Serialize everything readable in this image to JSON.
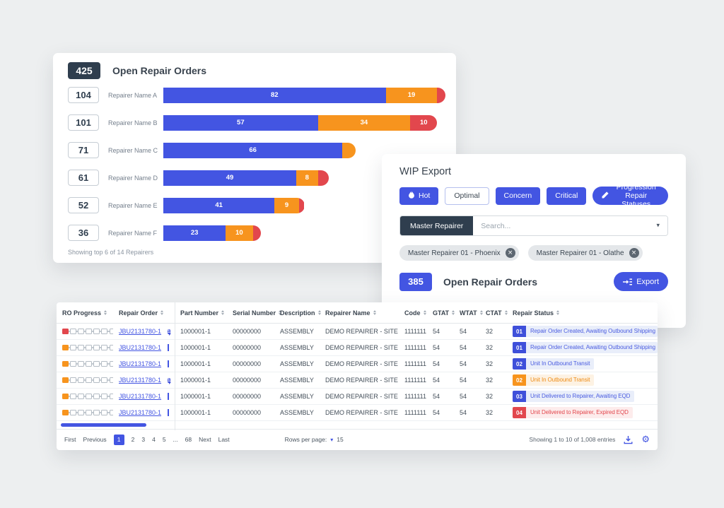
{
  "theme": {
    "blue": "#4355e2",
    "orange": "#f7941e",
    "red": "#e2474d",
    "dark": "#2f3e4e",
    "status_styles": {
      "blue": {
        "badge": "#3f50da",
        "text": "#4a5ce0",
        "bg": "#e9eefa"
      },
      "orange": {
        "badge": "#f7941e",
        "text": "#ee8b14",
        "bg": "#fdf2e3"
      },
      "red": {
        "badge": "#e2474d",
        "text": "#e2474d",
        "bg": "#fdecec"
      }
    }
  },
  "chart_card": {
    "total": "425",
    "title": "Open Repair Orders",
    "footnote": "Showing top 6 of 14 Repairers",
    "max_total": 104,
    "rows": [
      {
        "count": "104",
        "label": "Repairer Name A",
        "total": 104,
        "segments": [
          {
            "color": "blue",
            "value": 82,
            "label": "82"
          },
          {
            "color": "orange",
            "value": 19,
            "label": "19"
          },
          {
            "color": "red",
            "value": 3,
            "label": ""
          }
        ]
      },
      {
        "count": "101",
        "label": "Repairer Name B",
        "total": 101,
        "segments": [
          {
            "color": "blue",
            "value": 57,
            "label": "57"
          },
          {
            "color": "orange",
            "value": 34,
            "label": "34"
          },
          {
            "color": "red",
            "value": 10,
            "label": "10"
          }
        ]
      },
      {
        "count": "71",
        "label": "Repairer Name C",
        "total": 71,
        "segments": [
          {
            "color": "blue",
            "value": 66,
            "label": "66"
          },
          {
            "color": "orange",
            "value": 5,
            "label": ""
          }
        ]
      },
      {
        "count": "61",
        "label": "Repairer Name D",
        "total": 61,
        "segments": [
          {
            "color": "blue",
            "value": 49,
            "label": "49"
          },
          {
            "color": "orange",
            "value": 8,
            "label": "8"
          },
          {
            "color": "red",
            "value": 4,
            "label": ""
          }
        ]
      },
      {
        "count": "52",
        "label": "Repairer Name E",
        "total": 52,
        "segments": [
          {
            "color": "blue",
            "value": 41,
            "label": "41"
          },
          {
            "color": "orange",
            "value": 9,
            "label": "9"
          },
          {
            "color": "red",
            "value": 2,
            "label": ""
          }
        ]
      },
      {
        "count": "36",
        "label": "Repairer Name F",
        "total": 36,
        "segments": [
          {
            "color": "blue",
            "value": 23,
            "label": "23"
          },
          {
            "color": "orange",
            "value": 10,
            "label": "10"
          },
          {
            "color": "red",
            "value": 3,
            "label": ""
          }
        ]
      }
    ]
  },
  "wip_card": {
    "title": "WIP Export",
    "filters": [
      {
        "label": "Hot",
        "style": "solid",
        "icon": "flame"
      },
      {
        "label": "Optimal",
        "style": "outline"
      },
      {
        "label": "Concern",
        "style": "solid"
      },
      {
        "label": "Critical",
        "style": "solid"
      }
    ],
    "progression_button": {
      "label": "Progression Repair Statuses",
      "icon": "pencil"
    },
    "search": {
      "label": "Master Repairer",
      "placeholder": "Search..."
    },
    "chips": [
      {
        "label": "Master Repairer 01 - Phoenix"
      },
      {
        "label": "Master Repairer 01 - Olathe"
      }
    ],
    "total": "385",
    "total_label": "Open Repair Orders",
    "export_label": "Export"
  },
  "table": {
    "columns": [
      "RO Progress",
      "Repair Order",
      "Part Number",
      "Serial Number",
      "Description",
      "Repairer Name",
      "Code",
      "GTAT",
      "WTAT",
      "CTAT",
      "Repair Status"
    ],
    "rows": [
      {
        "progress_color": "red",
        "order": "JBU2131780-1",
        "comment": {
          "type": "filled",
          "count": "1"
        },
        "part": "1000001-1",
        "serial": "00000000",
        "desc": "ASSEMBLY",
        "repairer": "DEMO REPAIRER - SITE ABC",
        "code": "1111111",
        "gtat": "54",
        "wtat": "54",
        "ctat": "32",
        "status": {
          "code": "01",
          "text": "Repair Order Created, Awaiting Outbound Shipping",
          "color": "blue"
        }
      },
      {
        "progress_color": "orange",
        "order": "JBU2131780-1",
        "comment": {
          "type": "outline",
          "count": ""
        },
        "part": "1000001-1",
        "serial": "00000000",
        "desc": "ASSEMBLY",
        "repairer": "DEMO REPAIRER - SITE ABC",
        "code": "1111111",
        "gtat": "54",
        "wtat": "54",
        "ctat": "32",
        "status": {
          "code": "01",
          "text": "Repair Order Created, Awaiting Outbound Shipping",
          "color": "blue"
        }
      },
      {
        "progress_color": "orange",
        "order": "JBU2131780-1",
        "comment": {
          "type": "outline",
          "count": ""
        },
        "part": "1000001-1",
        "serial": "00000000",
        "desc": "ASSEMBLY",
        "repairer": "DEMO REPAIRER - SITE ABC",
        "code": "1111111",
        "gtat": "54",
        "wtat": "54",
        "ctat": "32",
        "status": {
          "code": "02",
          "text": "Unit In Outbound Transit",
          "color": "blue"
        }
      },
      {
        "progress_color": "orange",
        "order": "JBU2131780-1",
        "comment": {
          "type": "filled",
          "count": "1"
        },
        "part": "1000001-1",
        "serial": "00000000",
        "desc": "ASSEMBLY",
        "repairer": "DEMO REPAIRER - SITE ABC",
        "code": "1111111",
        "gtat": "54",
        "wtat": "54",
        "ctat": "32",
        "status": {
          "code": "02",
          "text": "Unit In Outbound Transit",
          "color": "orange"
        }
      },
      {
        "progress_color": "orange",
        "order": "JBU2131780-1",
        "comment": {
          "type": "outline",
          "count": ""
        },
        "part": "1000001-1",
        "serial": "00000000",
        "desc": "ASSEMBLY",
        "repairer": "DEMO REPAIRER - SITE ABC",
        "code": "1111111",
        "gtat": "54",
        "wtat": "54",
        "ctat": "32",
        "status": {
          "code": "03",
          "text": "Unit Delivered to Repairer, Awaiting EQD",
          "color": "blue"
        }
      },
      {
        "progress_color": "orange",
        "order": "JBU2131780-1",
        "comment": {
          "type": "outline",
          "count": ""
        },
        "part": "1000001-1",
        "serial": "00000000",
        "desc": "ASSEMBLY",
        "repairer": "DEMO REPAIRER - SITE ABC",
        "code": "1111111",
        "gtat": "54",
        "wtat": "54",
        "ctat": "32",
        "status": {
          "code": "04",
          "text": "Unit Delivered to Repairer, Expired EQD",
          "color": "red"
        }
      }
    ],
    "footer": {
      "pages": [
        "First",
        "Previous",
        "1",
        "2",
        "3",
        "4",
        "5",
        "...",
        "68",
        "Next",
        "Last"
      ],
      "active_page": "1",
      "rows_per_page_label": "Rows per page:",
      "rows_per_page_value": "15",
      "showing": "Showing 1 to 10 of 1,008 entries"
    }
  }
}
